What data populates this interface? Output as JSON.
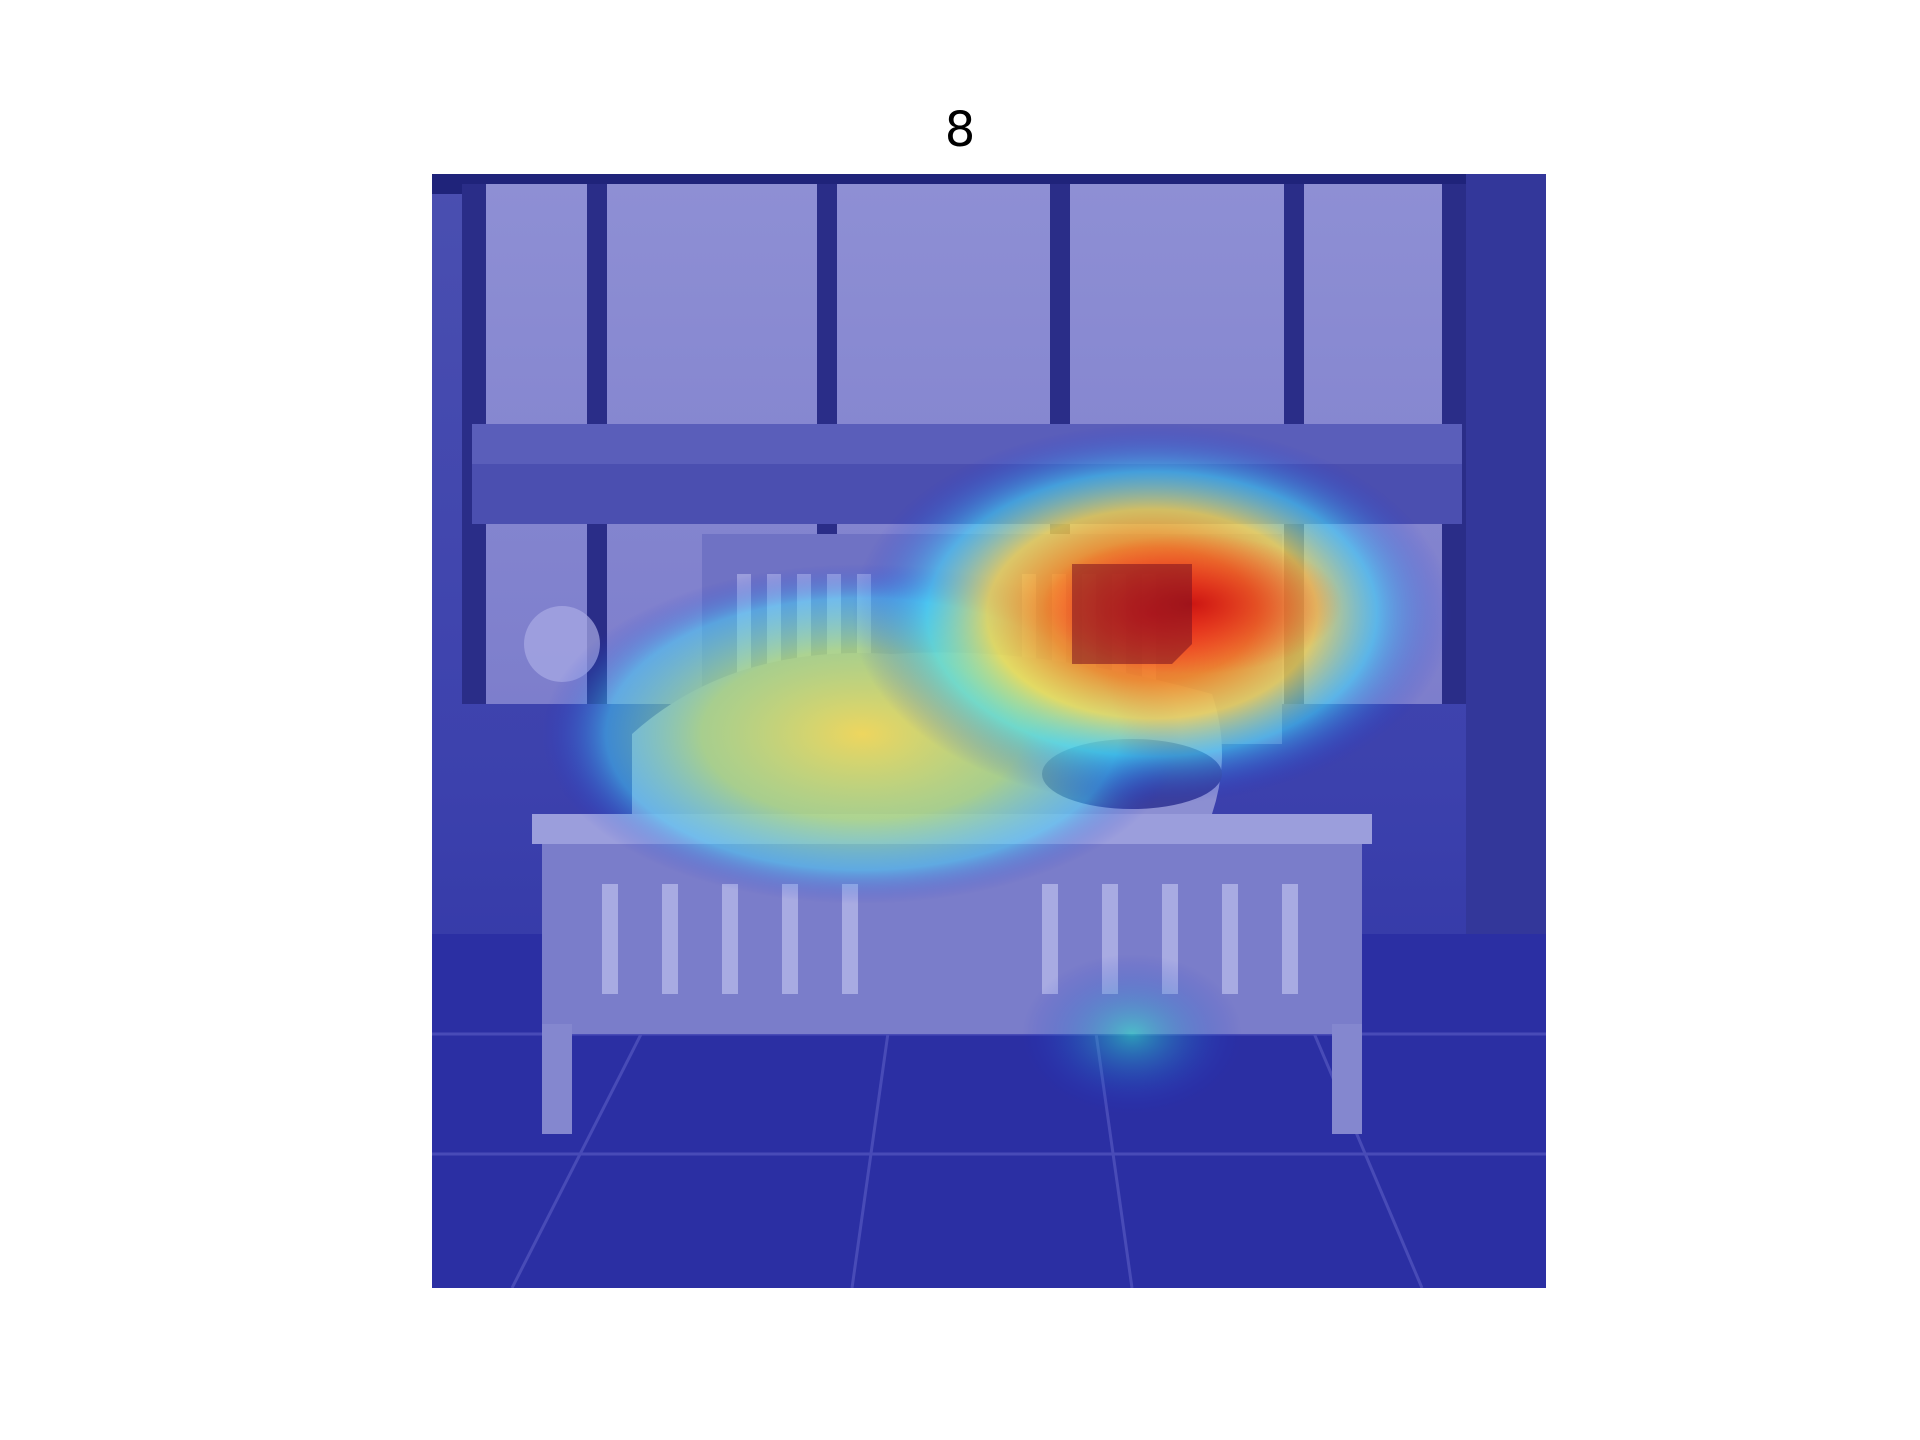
{
  "figure": {
    "title": "8"
  },
  "colors": {
    "background": "#ffffff",
    "base_tint": "#2a2f9c",
    "heat_low": "#1d2bd6",
    "heat_mid_cyan": "#3fe0ff",
    "heat_mid_yellow": "#ffe24a",
    "heat_high": "#ff2a1a"
  }
}
